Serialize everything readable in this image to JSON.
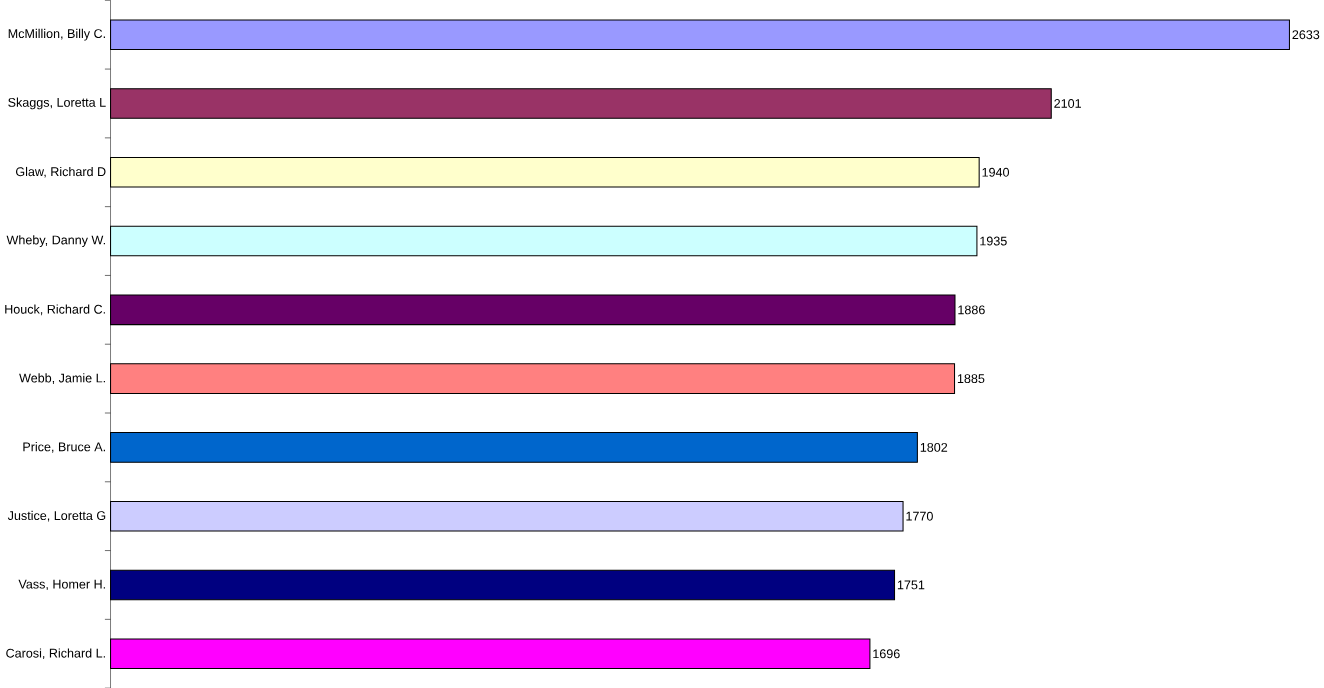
{
  "chart_data": {
    "type": "bar",
    "orientation": "horizontal",
    "categories": [
      "McMillion, Billy C.",
      "Skaggs, Loretta L",
      "Glaw, Richard D",
      "Wheby, Danny W.",
      "Houck, Richard C.",
      "Webb, Jamie L.",
      "Price, Bruce A.",
      "Justice, Loretta G",
      "Vass, Homer H.",
      "Carosi, Richard L."
    ],
    "values": [
      2633,
      2101,
      1940,
      1935,
      1886,
      1885,
      1802,
      1770,
      1751,
      1696
    ],
    "colors": [
      "#9999ff",
      "#993366",
      "#ffffcc",
      "#ccffff",
      "#660066",
      "#ff8080",
      "#0066cc",
      "#ccccff",
      "#000080",
      "#ff00ff"
    ],
    "data_labels": true
  }
}
